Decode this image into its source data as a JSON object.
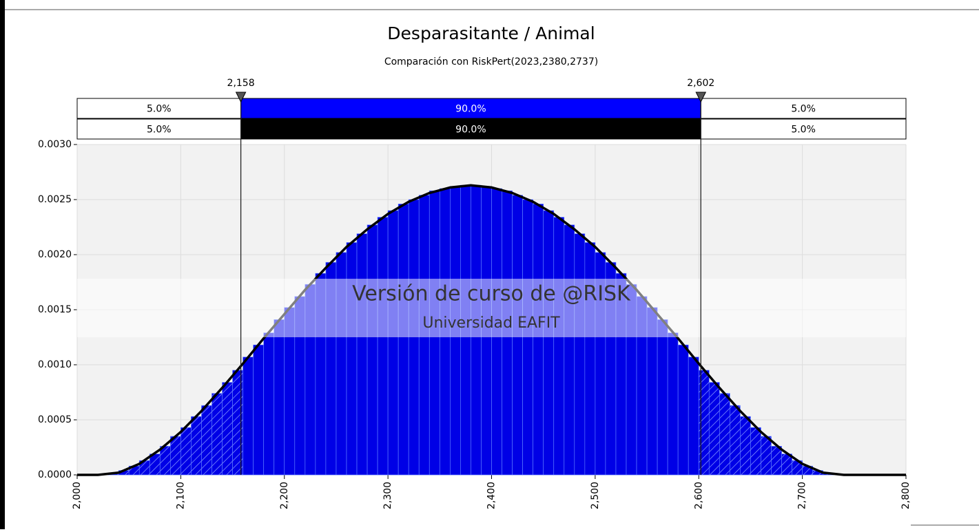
{
  "chart_data": {
    "type": "histogram",
    "title": "Desparasitante / Animal",
    "subtitle": "Comparación con RiskPert(2023,2380,2737)",
    "bins": [
      2000,
      2010,
      2020,
      2030,
      2040,
      2050,
      2060,
      2070,
      2080,
      2090,
      2100,
      2110,
      2120,
      2130,
      2140,
      2150,
      2160,
      2170,
      2180,
      2190,
      2200,
      2210,
      2220,
      2230,
      2240,
      2250,
      2260,
      2270,
      2280,
      2290,
      2300,
      2310,
      2320,
      2330,
      2340,
      2350,
      2360,
      2370,
      2380,
      2390,
      2400,
      2410,
      2420,
      2430,
      2440,
      2450,
      2460,
      2470,
      2480,
      2490,
      2500,
      2510,
      2520,
      2530,
      2540,
      2550,
      2560,
      2570,
      2580,
      2590,
      2600,
      2610,
      2620,
      2630,
      2640,
      2650,
      2660,
      2670,
      2680,
      2690,
      2700,
      2710,
      2720,
      2730,
      2740,
      2750,
      2760,
      2770,
      2780,
      2790,
      2800
    ],
    "values": [
      0,
      0,
      0,
      1e-05,
      4e-05,
      8e-05,
      0.00013,
      0.00019,
      0.00026,
      0.00035,
      0.00043,
      0.00053,
      0.00063,
      0.00074,
      0.00084,
      0.00095,
      0.00107,
      0.00118,
      0.00129,
      0.00141,
      0.00152,
      0.00162,
      0.00173,
      0.00183,
      0.00193,
      0.00202,
      0.00211,
      0.00219,
      0.00227,
      0.00234,
      0.0024,
      0.00246,
      0.0025,
      0.00254,
      0.00258,
      0.0026,
      0.00262,
      0.00263,
      0.00263,
      0.00262,
      0.0026,
      0.00258,
      0.00254,
      0.0025,
      0.00246,
      0.0024,
      0.00234,
      0.00227,
      0.00219,
      0.00211,
      0.00202,
      0.00193,
      0.00183,
      0.00173,
      0.00162,
      0.00152,
      0.00141,
      0.00129,
      0.00118,
      0.00107,
      0.00095,
      0.00084,
      0.00074,
      0.00063,
      0.00053,
      0.00043,
      0.00035,
      0.00026,
      0.00019,
      0.00013,
      8e-05,
      4e-05,
      1e-05,
      0,
      0,
      0,
      0,
      0,
      0,
      0
    ],
    "color": "#0000e6",
    "curve": {
      "color": "#000000",
      "x": [
        2000,
        2020,
        2040,
        2060,
        2080,
        2100,
        2120,
        2140,
        2160,
        2180,
        2200,
        2220,
        2240,
        2260,
        2280,
        2300,
        2320,
        2340,
        2360,
        2380,
        2400,
        2420,
        2440,
        2460,
        2480,
        2500,
        2520,
        2540,
        2560,
        2580,
        2600,
        2620,
        2640,
        2660,
        2680,
        2700,
        2720,
        2740,
        2800
      ],
      "values": [
        0,
        0,
        2e-05,
        0.0001,
        0.00023,
        0.00039,
        0.00058,
        0.00079,
        0.00101,
        0.00124,
        0.00146,
        0.00168,
        0.00188,
        0.00207,
        0.00223,
        0.00237,
        0.00248,
        0.00256,
        0.00261,
        0.00263,
        0.00261,
        0.00256,
        0.00248,
        0.00237,
        0.00223,
        0.00207,
        0.00188,
        0.00168,
        0.00146,
        0.00124,
        0.00101,
        0.00079,
        0.00058,
        0.00039,
        0.00023,
        0.0001,
        2e-05,
        0,
        0
      ]
    },
    "delimiters": [
      {
        "value": 2158,
        "label": "2,158"
      },
      {
        "value": 2602,
        "label": "2,602"
      }
    ],
    "probability_bars": [
      {
        "color": "#0000ff",
        "values": [
          5,
          90,
          5
        ],
        "value_labels": [
          "5.0%",
          "90.0%",
          "5.0%"
        ]
      },
      {
        "color": "#000000",
        "values": [
          5,
          90,
          5
        ],
        "value_labels": [
          "5.0%",
          "90.0%",
          "5.0%"
        ]
      }
    ],
    "xlim": [
      2000,
      2800
    ],
    "xticks": [
      {
        "value": 2000,
        "label": "2,000"
      },
      {
        "value": 2100,
        "label": "2,100"
      },
      {
        "value": 2200,
        "label": "2,200"
      },
      {
        "value": 2300,
        "label": "2,300"
      },
      {
        "value": 2400,
        "label": "2,400"
      },
      {
        "value": 2500,
        "label": "2,500"
      },
      {
        "value": 2600,
        "label": "2,600"
      },
      {
        "value": 2700,
        "label": "2,700"
      },
      {
        "value": 2800,
        "label": "2,800"
      }
    ],
    "ylim": [
      0,
      0.003
    ],
    "yticks": [
      {
        "value": 0,
        "label": "0.0000"
      },
      {
        "value": 0.0005,
        "label": "0.0005"
      },
      {
        "value": 0.001,
        "label": "0.0010"
      },
      {
        "value": 0.0015,
        "label": "0.0015"
      },
      {
        "value": 0.002,
        "label": "0.0020"
      },
      {
        "value": 0.0025,
        "label": "0.0025"
      },
      {
        "value": 0.003,
        "label": "0.0030"
      }
    ],
    "grid": true,
    "watermark": [
      "Versión de curso de @RISK",
      "Universidad EAFIT"
    ]
  }
}
